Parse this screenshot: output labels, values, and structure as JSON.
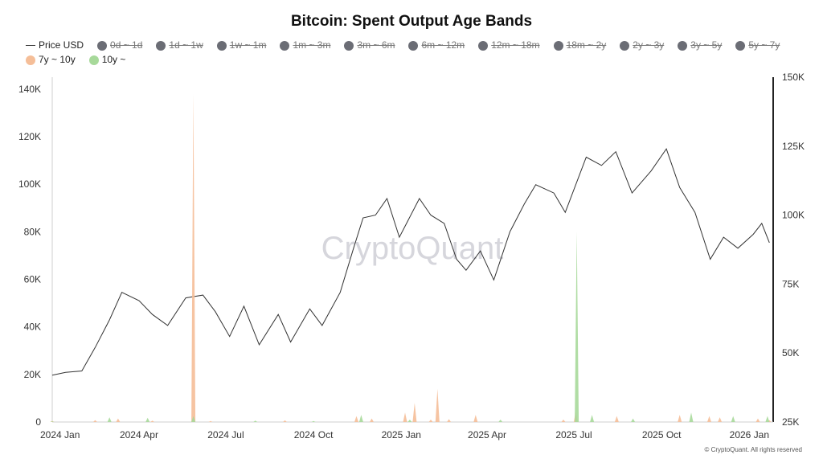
{
  "chart_data": {
    "type": "line",
    "title": "Bitcoin: Spent Output Age Bands",
    "watermark": "CryptoQuant",
    "credit": "© CryptoQuant. All rights reserved",
    "x_ticks": [
      "2024 Jan",
      "2024 Apr",
      "2024 Jul",
      "2024 Oct",
      "2025 Jan",
      "2025 Apr",
      "2025 Jul",
      "2025 Oct",
      "2026 Jan"
    ],
    "y_left": {
      "ticks": [
        "0",
        "20K",
        "40K",
        "60K",
        "80K",
        "100K",
        "120K",
        "140K"
      ],
      "range": [
        0,
        145000
      ]
    },
    "y_right": {
      "ticks": [
        "25K",
        "50K",
        "75K",
        "100K",
        "125K",
        "150K"
      ],
      "range": [
        25000,
        150000
      ]
    },
    "legend": [
      {
        "label": "Price USD",
        "marker": "line",
        "color": "#333333",
        "active": true
      },
      {
        "label": "0d ~ 1d",
        "marker": "dot",
        "color": "#6b6d75",
        "active": false
      },
      {
        "label": "1d ~ 1w",
        "marker": "dot",
        "color": "#6b6d75",
        "active": false
      },
      {
        "label": "1w ~ 1m",
        "marker": "dot",
        "color": "#6b6d75",
        "active": false
      },
      {
        "label": "1m ~ 3m",
        "marker": "dot",
        "color": "#6b6d75",
        "active": false
      },
      {
        "label": "3m ~ 6m",
        "marker": "dot",
        "color": "#6b6d75",
        "active": false
      },
      {
        "label": "6m ~ 12m",
        "marker": "dot",
        "color": "#6b6d75",
        "active": false
      },
      {
        "label": "12m ~ 18m",
        "marker": "dot",
        "color": "#6b6d75",
        "active": false
      },
      {
        "label": "18m ~ 2y",
        "marker": "dot",
        "color": "#6b6d75",
        "active": false
      },
      {
        "label": "2y ~ 3y",
        "marker": "dot",
        "color": "#6b6d75",
        "active": false
      },
      {
        "label": "3y ~ 5y",
        "marker": "dot",
        "color": "#6b6d75",
        "active": false
      },
      {
        "label": "5y ~ 7y",
        "marker": "dot",
        "color": "#6b6d75",
        "active": false
      },
      {
        "label": "7y ~ 10y",
        "marker": "dot",
        "color": "#f5be98",
        "active": true
      },
      {
        "label": "10y ~",
        "marker": "dot",
        "color": "#a7d99a",
        "active": true
      }
    ],
    "series": [
      {
        "name": "Price USD",
        "axis": "right",
        "color": "#333333",
        "points": [
          [
            "2024-01-01",
            42000
          ],
          [
            "2024-01-15",
            43000
          ],
          [
            "2024-02-01",
            43500
          ],
          [
            "2024-02-15",
            52000
          ],
          [
            "2024-03-01",
            62000
          ],
          [
            "2024-03-14",
            72000
          ],
          [
            "2024-04-01",
            69000
          ],
          [
            "2024-04-15",
            64000
          ],
          [
            "2024-05-01",
            60000
          ],
          [
            "2024-05-20",
            70000
          ],
          [
            "2024-06-07",
            71000
          ],
          [
            "2024-06-20",
            65000
          ],
          [
            "2024-07-05",
            56000
          ],
          [
            "2024-07-20",
            67000
          ],
          [
            "2024-08-05",
            53000
          ],
          [
            "2024-08-25",
            64000
          ],
          [
            "2024-09-07",
            54000
          ],
          [
            "2024-09-27",
            66000
          ],
          [
            "2024-10-10",
            60000
          ],
          [
            "2024-10-29",
            72000
          ],
          [
            "2024-11-12",
            88000
          ],
          [
            "2024-11-22",
            99000
          ],
          [
            "2024-12-05",
            100000
          ],
          [
            "2024-12-17",
            106000
          ],
          [
            "2024-12-30",
            92000
          ],
          [
            "2025-01-20",
            106000
          ],
          [
            "2025-02-01",
            100000
          ],
          [
            "2025-02-15",
            97000
          ],
          [
            "2025-02-28",
            84000
          ],
          [
            "2025-03-10",
            80000
          ],
          [
            "2025-03-25",
            87000
          ],
          [
            "2025-04-08",
            76500
          ],
          [
            "2025-04-25",
            94000
          ],
          [
            "2025-05-10",
            104000
          ],
          [
            "2025-05-22",
            111000
          ],
          [
            "2025-06-10",
            108000
          ],
          [
            "2025-06-22",
            101000
          ],
          [
            "2025-07-14",
            121000
          ],
          [
            "2025-07-30",
            118000
          ],
          [
            "2025-08-14",
            123000
          ],
          [
            "2025-08-31",
            108000
          ],
          [
            "2025-09-20",
            116000
          ],
          [
            "2025-10-06",
            124000
          ],
          [
            "2025-10-20",
            110000
          ],
          [
            "2025-11-05",
            101000
          ],
          [
            "2025-11-21",
            84000
          ],
          [
            "2025-12-05",
            92000
          ],
          [
            "2025-12-20",
            88000
          ],
          [
            "2026-01-05",
            93000
          ],
          [
            "2026-01-14",
            97000
          ],
          [
            "2026-01-22",
            90000
          ]
        ]
      },
      {
        "name": "7y ~ 10y",
        "axis": "left",
        "color": "#f5be98",
        "points": [
          [
            "2024-01-01",
            500
          ],
          [
            "2024-02-15",
            800
          ],
          [
            "2024-03-10",
            1500
          ],
          [
            "2024-04-15",
            600
          ],
          [
            "2024-05-28",
            138000
          ],
          [
            "2024-06-15",
            400
          ],
          [
            "2024-09-01",
            700
          ],
          [
            "2024-11-15",
            2500
          ],
          [
            "2024-12-01",
            1500
          ],
          [
            "2025-01-05",
            4000
          ],
          [
            "2025-01-15",
            8000
          ],
          [
            "2025-02-01",
            1000
          ],
          [
            "2025-02-08",
            14000
          ],
          [
            "2025-02-20",
            1200
          ],
          [
            "2025-03-20",
            3000
          ],
          [
            "2025-06-20",
            1000
          ],
          [
            "2025-07-03",
            4500
          ],
          [
            "2025-08-15",
            2500
          ],
          [
            "2025-10-20",
            3000
          ],
          [
            "2025-11-20",
            2500
          ],
          [
            "2025-12-01",
            2000
          ],
          [
            "2026-01-10",
            1500
          ],
          [
            "2026-01-22",
            800
          ]
        ]
      },
      {
        "name": "10y ~",
        "axis": "left",
        "color": "#a7d99a",
        "points": [
          [
            "2024-01-01",
            300
          ],
          [
            "2024-03-01",
            2000
          ],
          [
            "2024-04-10",
            1800
          ],
          [
            "2024-05-28",
            2500
          ],
          [
            "2024-08-01",
            600
          ],
          [
            "2024-10-01",
            400
          ],
          [
            "2024-11-20",
            3000
          ],
          [
            "2025-01-10",
            1000
          ],
          [
            "2025-04-15",
            1000
          ],
          [
            "2025-07-04",
            80000
          ],
          [
            "2025-07-20",
            3000
          ],
          [
            "2025-09-01",
            1500
          ],
          [
            "2025-11-01",
            4000
          ],
          [
            "2025-12-15",
            2500
          ],
          [
            "2026-01-20",
            2500
          ]
        ]
      }
    ]
  }
}
